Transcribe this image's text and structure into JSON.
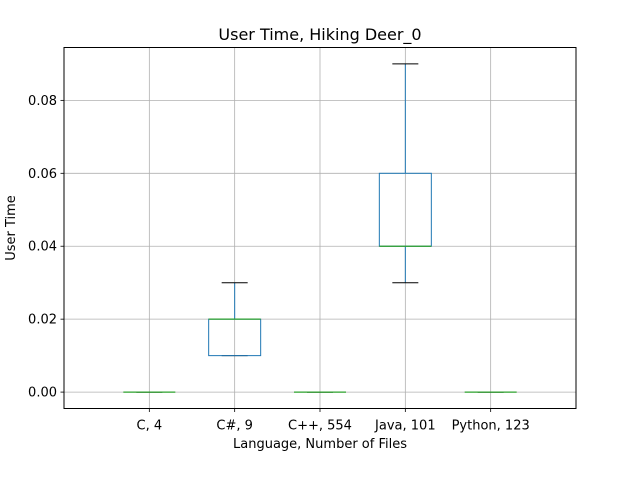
{
  "chart_data": {
    "type": "box",
    "title": "User Time, Hiking Deer_0",
    "xlabel": "Language, Number of Files",
    "ylabel": "User Time",
    "ylim": [
      -0.0045,
      0.0945
    ],
    "yticks": [
      0.0,
      0.02,
      0.04,
      0.06,
      0.08
    ],
    "ytick_labels": [
      "0.00",
      "0.02",
      "0.04",
      "0.06",
      "0.08"
    ],
    "grid": true,
    "categories": [
      "C, 4",
      "C#, 9",
      "C++, 554",
      "Java, 101",
      "Python, 123"
    ],
    "boxes": [
      {
        "whisker_low": 0.0,
        "q1": 0.0,
        "median": 0.0,
        "q3": 0.0,
        "whisker_high": 0.0
      },
      {
        "whisker_low": 0.01,
        "q1": 0.01,
        "median": 0.02,
        "q3": 0.02,
        "whisker_high": 0.03
      },
      {
        "whisker_low": 0.0,
        "q1": 0.0,
        "median": 0.0,
        "q3": 0.0,
        "whisker_high": 0.0
      },
      {
        "whisker_low": 0.03,
        "q1": 0.04,
        "median": 0.04,
        "q3": 0.06,
        "whisker_high": 0.09
      },
      {
        "whisker_low": 0.0,
        "q1": 0.0,
        "median": 0.0,
        "q3": 0.0,
        "whisker_high": 0.0
      }
    ],
    "colors": {
      "box": "#1f77b4",
      "median": "#2ca02c",
      "whisker_cap": "#000000",
      "grid": "#b0b0b0"
    }
  }
}
